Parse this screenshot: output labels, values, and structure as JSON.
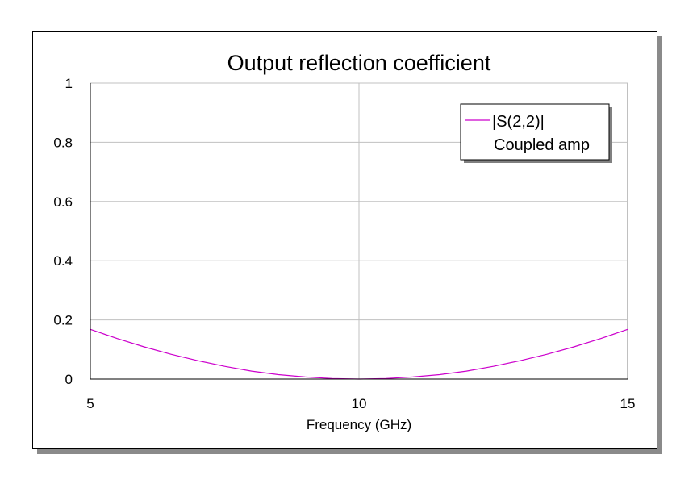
{
  "chart_data": {
    "type": "line",
    "title": "Output reflection coefficient",
    "xlabel": "Frequency (GHz)",
    "ylabel": "",
    "xlim": [
      5,
      15
    ],
    "ylim": [
      0,
      1
    ],
    "x_ticks": [
      "5",
      "10",
      "15"
    ],
    "y_ticks": [
      "0",
      "0.2",
      "0.4",
      "0.6",
      "0.8",
      "1"
    ],
    "x_tick_values": [
      5,
      10,
      15
    ],
    "y_tick_values": [
      0,
      0.2,
      0.4,
      0.6,
      0.8,
      1
    ],
    "grid": true,
    "legend_position": "top-right",
    "series": [
      {
        "name": "|S(2,2)|",
        "subtitle": "Coupled amp",
        "color": "#cc00cc",
        "x": [
          5,
          5.5,
          6,
          6.5,
          7,
          7.5,
          8,
          8.5,
          9,
          9.5,
          10,
          10.5,
          11,
          11.5,
          12,
          12.5,
          13,
          13.5,
          14,
          14.5,
          15
        ],
        "y": [
          0.168,
          0.137,
          0.109,
          0.084,
          0.062,
          0.043,
          0.027,
          0.015,
          0.007,
          0.002,
          0.0,
          0.002,
          0.007,
          0.015,
          0.027,
          0.043,
          0.062,
          0.084,
          0.109,
          0.137,
          0.168
        ]
      }
    ]
  }
}
